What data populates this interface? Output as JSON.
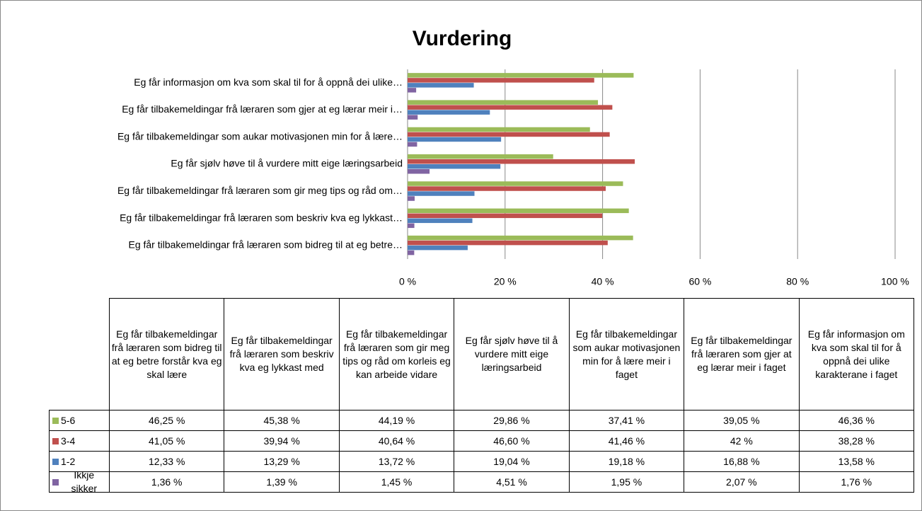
{
  "chart_data": {
    "type": "hbar",
    "title": "Vurdering",
    "categories": [
      "Eg får tilbakemeldingar frå læraren som bidreg til at eg betre forstår kva eg skal lære",
      "Eg får tilbakemeldingar frå læraren som beskriv kva eg lykkast med",
      "Eg får tilbakemeldingar frå læraren som gir meg tips og råd om korleis eg kan arbeide vidare",
      "Eg får sjølv høve til å vurdere mitt eige læringsarbeid",
      "Eg får tilbakemeldingar som aukar motivasjonen min for å lære meir i faget",
      "Eg får tilbakemeldingar frå læraren som gjer at eg lærar meir i faget",
      "Eg får informasjon om kva som skal til for å oppnå dei ulike karakterane i faget"
    ],
    "category_axis_labels": [
      "Eg får tilbakemeldingar frå læraren som bidreg til at eg betre…",
      "Eg får tilbakemeldingar frå læraren som beskriv kva eg lykkast…",
      "Eg får tilbakemeldingar frå læraren som gir meg tips og råd om…",
      "Eg får sjølv høve til å vurdere mitt eige læringsarbeid",
      "Eg får tilbakemeldingar som aukar motivasjonen min for å lære…",
      "Eg får tilbakemeldingar frå læraren som gjer at eg lærar meir i…",
      "Eg får informasjon om kva som skal til for å oppnå dei ulike…"
    ],
    "series": [
      {
        "name": "5-6",
        "color": "#9bbb59",
        "values": [
          46.25,
          45.38,
          44.19,
          29.86,
          37.41,
          39.05,
          46.36
        ],
        "value_labels": [
          "46,25 %",
          "45,38 %",
          "44,19 %",
          "29,86 %",
          "37,41 %",
          "39,05 %",
          "46,36 %"
        ]
      },
      {
        "name": "3-4",
        "color": "#c0504d",
        "values": [
          41.05,
          39.94,
          40.64,
          46.6,
          41.46,
          42,
          38.28
        ],
        "value_labels": [
          "41,05 %",
          "39,94 %",
          "40,64 %",
          "46,60 %",
          "41,46 %",
          "42 %",
          "38,28 %"
        ]
      },
      {
        "name": "1-2",
        "color": "#4f81bd",
        "values": [
          12.33,
          13.29,
          13.72,
          19.04,
          19.18,
          16.88,
          13.58
        ],
        "value_labels": [
          "12,33 %",
          "13,29 %",
          "13,72 %",
          "19,04 %",
          "19,18 %",
          "16,88 %",
          "13,58 %"
        ]
      },
      {
        "name": "Ikkje sikker",
        "color": "#8064a2",
        "values": [
          1.36,
          1.39,
          1.45,
          4.51,
          1.95,
          2.07,
          1.76
        ],
        "value_labels": [
          "1,36 %",
          "1,39 %",
          "1,45 %",
          "4,51 %",
          "1,95 %",
          "2,07 %",
          "1,76 %"
        ]
      }
    ],
    "xlim": [
      0,
      100
    ],
    "xticks": [
      {
        "value": 0,
        "label": "0 %"
      },
      {
        "value": 20,
        "label": "20 %"
      },
      {
        "value": 40,
        "label": "40 %"
      },
      {
        "value": 60,
        "label": "60 %"
      },
      {
        "value": 80,
        "label": "80 %"
      },
      {
        "value": 100,
        "label": "100 %"
      }
    ],
    "grid": true
  }
}
